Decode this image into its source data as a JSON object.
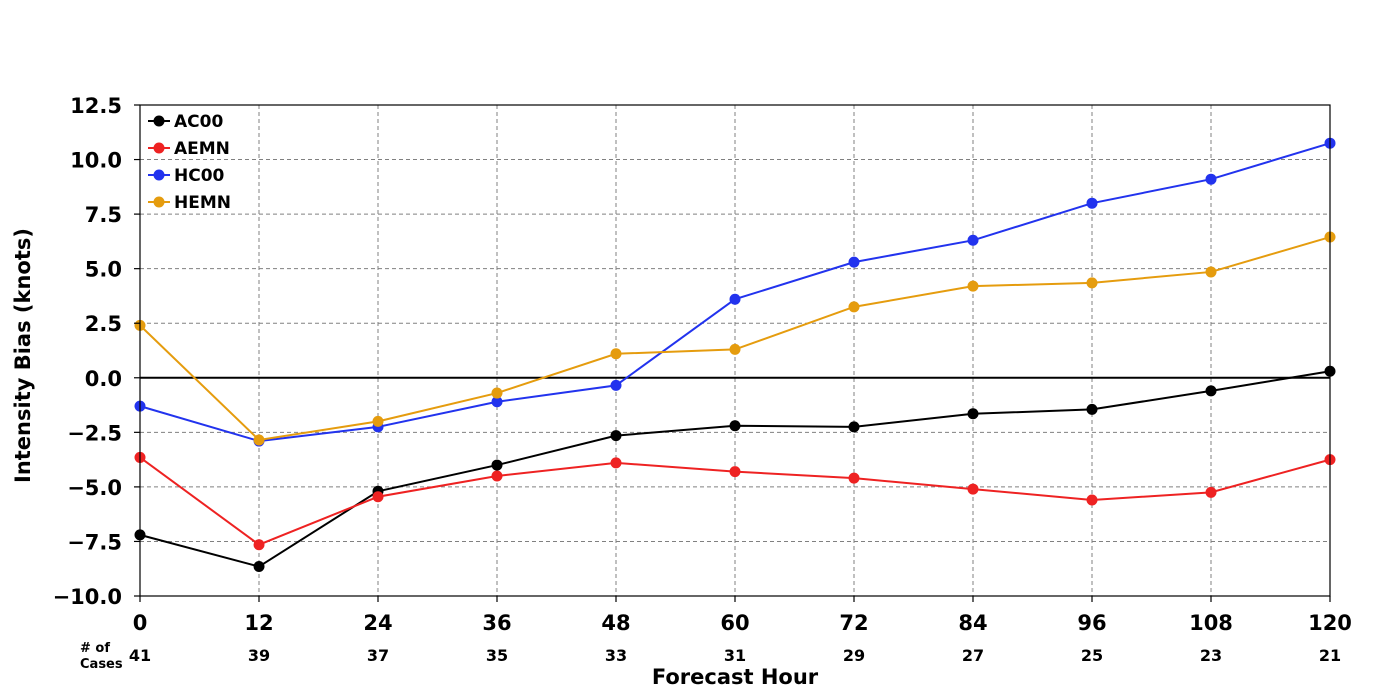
{
  "chart_data": {
    "type": "line",
    "title": "",
    "xlabel": "Forecast Hour",
    "ylabel": "Intensity Bias (knots)",
    "x": [
      0,
      12,
      24,
      36,
      48,
      60,
      72,
      84,
      96,
      108,
      120
    ],
    "x_tick_labels": [
      "0",
      "12",
      "24",
      "36",
      "48",
      "60",
      "72",
      "84",
      "96",
      "108",
      "120"
    ],
    "xlim": [
      0,
      120
    ],
    "ylim": [
      -10.0,
      12.5
    ],
    "y_ticks": [
      -10.0,
      -7.5,
      -5.0,
      -2.5,
      0.0,
      2.5,
      5.0,
      7.5,
      10.0,
      12.5
    ],
    "y_tick_labels": [
      "−10.0",
      "−7.5",
      "−5.0",
      "−2.5",
      "0.0",
      "2.5",
      "5.0",
      "7.5",
      "10.0",
      "12.5"
    ],
    "grid": true,
    "legend_position": "top-left",
    "cases_header": [
      "# of",
      "Cases"
    ],
    "cases": [
      "41",
      "39",
      "37",
      "35",
      "33",
      "31",
      "29",
      "27",
      "25",
      "23",
      "21"
    ],
    "series": [
      {
        "name": "AC00",
        "color": "#000000",
        "values": [
          -7.2,
          -8.65,
          -5.2,
          -4.0,
          -2.65,
          -2.2,
          -2.25,
          -1.65,
          -1.45,
          -0.6,
          0.3
        ]
      },
      {
        "name": "AEMN",
        "color": "#ee2222",
        "values": [
          -3.65,
          -7.65,
          -5.45,
          -4.5,
          -3.9,
          -4.3,
          -4.6,
          -5.1,
          -5.6,
          -5.25,
          -3.75
        ]
      },
      {
        "name": "HC00",
        "color": "#2233ee",
        "values": [
          -1.3,
          -2.9,
          -2.25,
          -1.1,
          -0.35,
          3.6,
          5.3,
          6.3,
          8.0,
          9.1,
          10.75
        ]
      },
      {
        "name": "HEMN",
        "color": "#e59c0e",
        "values": [
          2.4,
          -2.85,
          -2.0,
          -0.7,
          1.1,
          1.3,
          3.25,
          4.2,
          4.35,
          4.85,
          6.45
        ]
      }
    ]
  }
}
